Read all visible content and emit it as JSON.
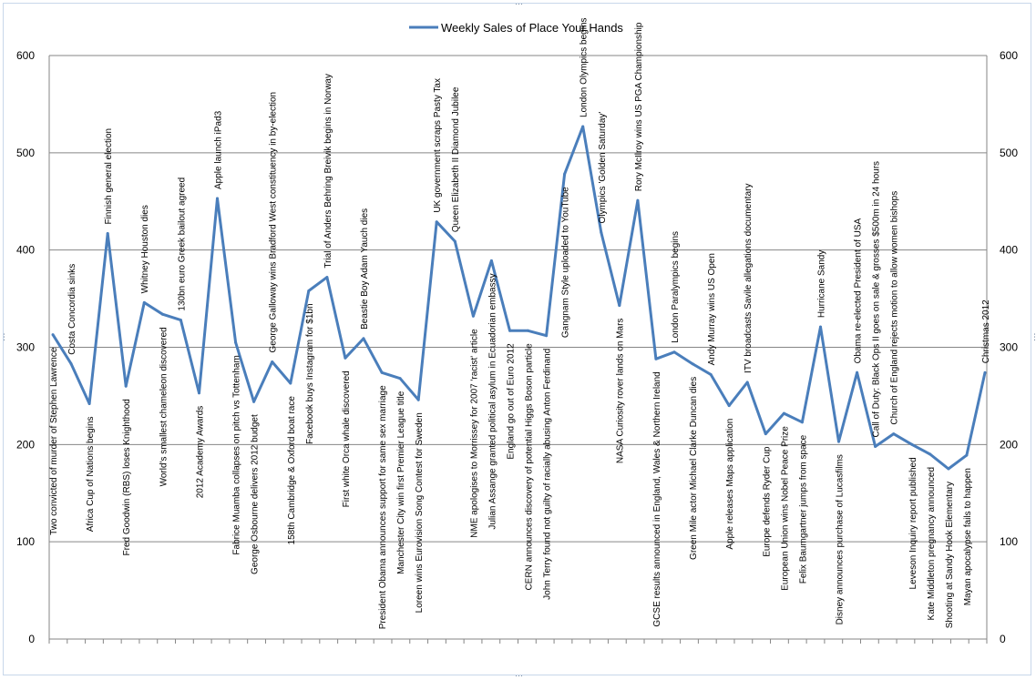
{
  "chart_data": {
    "type": "line",
    "series": [
      {
        "name": "Weekly Sales of Place Your Hands",
        "color": "#4a7ebb",
        "values": [
          313,
          283,
          242,
          417,
          260,
          346,
          334,
          328,
          253,
          453,
          305,
          244,
          285,
          263,
          358,
          372,
          289,
          309,
          274,
          268,
          246,
          429,
          409,
          332,
          389,
          317,
          317,
          312,
          478,
          527,
          418,
          343,
          451,
          288,
          295,
          283,
          272,
          240,
          264,
          211,
          232,
          223,
          321,
          203,
          274,
          198,
          211,
          200,
          190,
          175,
          189,
          274
        ]
      }
    ],
    "annotations": [
      "Two convicted of murder of Stephen Lawrence",
      "Costa Concordia sinks",
      "Africa Cup of Nations begins",
      "Finnish general election",
      "Fred Goodwin (RBS) loses Knighthood",
      "Whitney Houston dies",
      "World's smallest chameleon discovered",
      "130bn euro Greek bailout agreed",
      "2012 Academy Awards",
      "Apple launch iPad3",
      "Fabrice Muamba collapses on pitch vs Tottenham",
      "George Osbourne delivers 2012 budget",
      "George Galloway wins Bradford West constituency in by-election",
      "158th Cambridge & Oxford boat race",
      "Facebook buys Instagram for $1bn",
      "Trial of Anders Behring Breivik begins in Norway",
      "First white Orca whale discovered",
      "Beastie Boy Adam Yauch dies",
      "President Obama announces support for same sex marriage",
      "Manchester City win first Premier League title",
      "Loreen wins Eurovision Song Contest for Sweden",
      "UK government scraps Pasty Tax",
      "Queen Elizabeth II Diamond Jubilee",
      "NME apologises to Morrissey for 2007 'racist' article",
      "Julian Assange granted political asylum in Ecuadorian embassy",
      "England go out of Euro 2012",
      "CERN announces discovery of potential Higgs Boson particle",
      "John Terry found not guilty of racially abusing Anton Ferdinand",
      "Gangnam Style uploaded to YouTube",
      "London Olympics begins",
      "Olympics 'Golden Saturday'",
      "NASA Curiosity rover lands on Mars",
      "Rory McIlroy wins US PGA Championship",
      "GCSE results announced in England, Wales & Northern Ireland",
      "London Paralympics begins",
      "Green Mile actor Michael Clarke Duncan dies",
      "Andy Murray wins US Open",
      "Apple releases Maps application",
      "ITV broadcasts Savile allegations documentary",
      "Europe defends Ryder Cup",
      "European Union wins Nobel Peace Prize",
      "Felix Baumgartner jumps from space",
      "Hurricane Sandy",
      "Disney announces purchase of Lucasfilms",
      "Obama re-elected President of USA",
      "Call of Duty: Black Ops II goes on sale & grosses $500m in 24 hours",
      "Church of England rejects motion to allow women bishops",
      "Leveson Inquiry report published",
      "Kate Middleton pregnancy announced",
      "Shooting at Sandy Hook Elementary",
      "Mayan apocalypse fails to happen",
      "Christmas 2012"
    ],
    "annotation_side": [
      "below",
      "above",
      "below",
      "above",
      "below",
      "above",
      "below",
      "above",
      "below",
      "above",
      "below",
      "below",
      "above",
      "below",
      "below",
      "above",
      "below",
      "above",
      "below",
      "below",
      "below",
      "above",
      "above",
      "below",
      "below",
      "below",
      "below",
      "below",
      "below",
      "above",
      "above",
      "below",
      "above",
      "below",
      "above",
      "below",
      "above",
      "below",
      "above",
      "below",
      "below",
      "below",
      "above",
      "below",
      "above",
      "above",
      "above",
      "below",
      "below",
      "below",
      "below",
      "above"
    ],
    "ylim": [
      0,
      600
    ],
    "yticks": [
      "0",
      "100",
      "200",
      "300",
      "400",
      "500",
      "600"
    ],
    "grid": true,
    "legend": "top",
    "secondary_axis": true
  }
}
